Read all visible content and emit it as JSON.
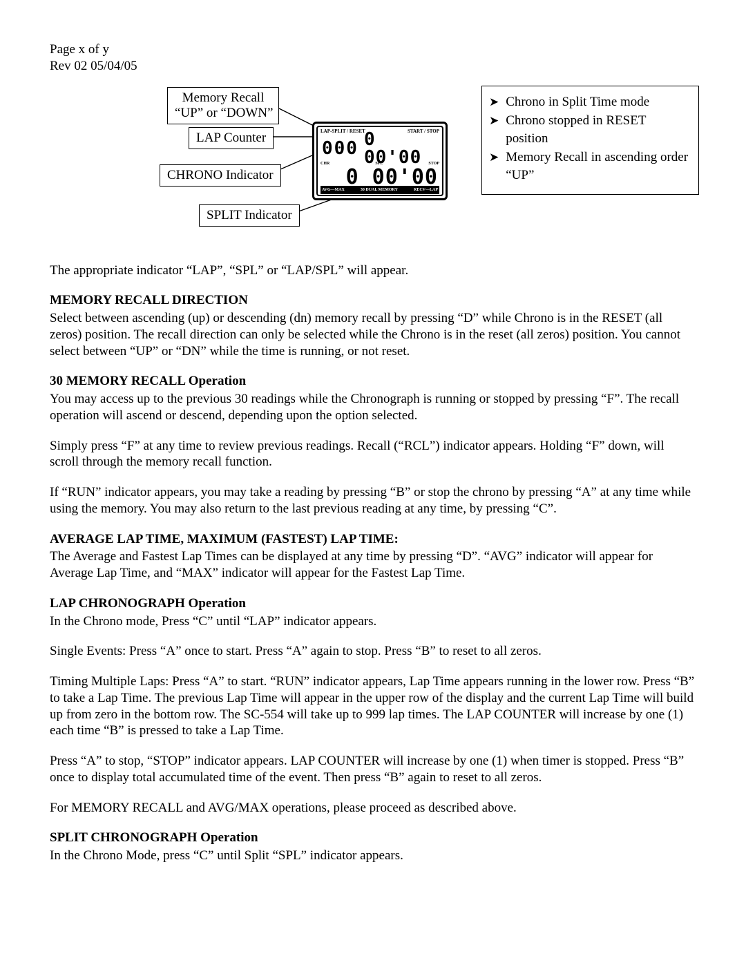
{
  "header": {
    "line1": "Page x of y",
    "line2": "Rev 02 05/04/05"
  },
  "diagram": {
    "callouts": {
      "mem_recall_l1": "Memory Recall",
      "mem_recall_l2": "“UP” or “DOWN”",
      "lap_counter": "LAP Counter",
      "chrono_ind": "CHRONO Indicator",
      "split_ind": "SPLIT Indicator"
    },
    "lcd": {
      "top_left": "LAP-SPLIT / RESET",
      "top_right": "START / STOP",
      "row1_small": "000",
      "row1_med": "0 00'00",
      "mid_left": "CHR",
      "mid_mid": "SPL",
      "mid_right": "STOP",
      "row2": "0 00'00",
      "bot_left": "AVG—MAX",
      "bot_mid": "30 DUAL MEMORY",
      "bot_right": "RECV—LAP"
    },
    "lines": {
      "stroke": "#000000",
      "width": 1.4,
      "paths": [
        "M318 24 L400 65",
        "M318 72 L396 72",
        "M318 126 L396 92",
        "M352 183 L430 155"
      ]
    }
  },
  "sidebox": {
    "items": [
      "Chrono in Split Time mode",
      "Chrono stopped in RESET position",
      "Memory Recall in ascending order “UP”"
    ]
  },
  "body": {
    "p1": "The appropriate indicator “LAP”, “SPL” or “LAP/SPL” will appear.",
    "h1": "MEMORY RECALL DIRECTION",
    "p2": "Select between ascending (up) or descending (dn) memory recall by pressing “D” while Chrono is in the RESET (all zeros) position.  The recall direction can only be selected while the Chrono is in the reset (all zeros) position.  You cannot select between “UP” or “DN” while the time is running, or not reset.",
    "h2": "30 MEMORY RECALL Operation",
    "p3": "You may access up to the previous 30 readings while the Chronograph is running or stopped by pressing “F”.  The recall operation will ascend or descend, depending upon the option selected.",
    "p4": "Simply press “F” at any time to review previous readings.  Recall (“RCL”) indicator appears.  Holding “F” down, will scroll through the memory recall function.",
    "p5": "If “RUN” indicator appears, you may take a reading by pressing “B” or stop the chrono by pressing “A” at any time while using the memory.  You may also return to the last previous reading at any time, by pressing “C”.",
    "h3": "AVERAGE LAP TIME, MAXIMUM (FASTEST) LAP TIME:",
    "p6": "The Average and Fastest Lap Times can be displayed at any time by pressing “D”.  “AVG” indicator will appear for Average Lap Time, and “MAX” indicator will appear for the Fastest Lap Time.",
    "h4": "LAP CHRONOGRAPH Operation",
    "p7": "In the Chrono mode, Press “C” until “LAP” indicator appears.",
    "p8": "Single Events:  Press “A” once to start.  Press “A” again to stop.  Press “B” to reset to all zeros.",
    "p9": "Timing Multiple Laps:  Press “A” to start.  “RUN” indicator appears,  Lap Time appears running in the lower row.  Press “B” to take a Lap Time.  The previous Lap Time will appear in the upper row of the display and the current Lap Time will build up from zero in the bottom row.   The SC-554 will take up to 999 lap times. The LAP COUNTER will  increase by one (1) each time “B” is pressed to take a Lap Time.",
    "p10": "Press “A” to stop, “STOP” indicator appears.  LAP COUNTER will increase by one (1) when timer is stopped.  Press “B” once to display total accumulated time of the event.  Then press “B” again to reset to all zeros.",
    "p11": "For MEMORY RECALL and AVG/MAX operations, please proceed as described above.",
    "h5": "SPLIT CHRONOGRAPH Operation",
    "p12": "In the Chrono Mode, press “C” until Split “SPL” indicator appears."
  }
}
